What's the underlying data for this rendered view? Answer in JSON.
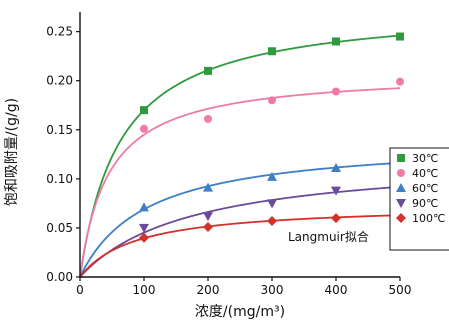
{
  "chart_data": {
    "type": "scatter",
    "xlabel": "浓度/(mg/m³)",
    "ylabel": "饱和吸附量/(g/g)",
    "xlim": [
      0,
      500
    ],
    "ylim": [
      0,
      0.27
    ],
    "xticks": [
      "0",
      "100",
      "200",
      "300",
      "400",
      "500"
    ],
    "yticks": [
      "0.00",
      "0.05",
      "0.10",
      "0.15",
      "0.20",
      "0.25"
    ],
    "grid": false,
    "legend_position": "right",
    "annotation": "Langmuir拟合",
    "x": [
      100,
      200,
      300,
      400,
      500
    ],
    "series": [
      {
        "name": "30℃",
        "color": "#2e9a3c",
        "marker": "square",
        "values": [
          0.17,
          0.21,
          0.23,
          0.24,
          0.245
        ]
      },
      {
        "name": "40℃",
        "color": "#ef7aa8",
        "marker": "circle",
        "values": [
          0.151,
          0.161,
          0.18,
          0.189,
          0.199
        ]
      },
      {
        "name": "60℃",
        "color": "#3d7fc4",
        "marker": "triangle-up",
        "values": [
          0.071,
          0.091,
          0.102,
          0.111,
          0.119
        ]
      },
      {
        "name": "90℃",
        "color": "#6a4c9a",
        "marker": "triangle-down",
        "values": [
          0.05,
          0.062,
          0.075,
          0.088,
          0.094
        ]
      },
      {
        "name": "100℃",
        "color": "#d2312c",
        "marker": "diamond",
        "values": [
          0.04,
          0.051,
          0.057,
          0.06,
          0.064
        ]
      }
    ]
  }
}
